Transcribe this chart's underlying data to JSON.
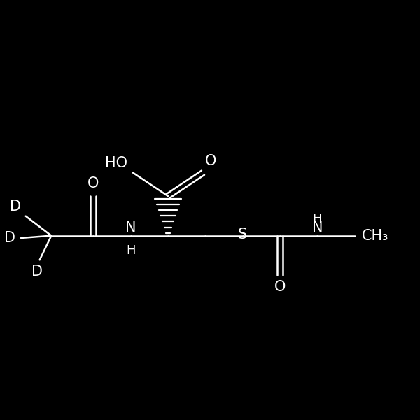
{
  "bg_color": "#000000",
  "fg_color": "#ffffff",
  "figsize": [
    6.0,
    6.0
  ],
  "dpi": 100,
  "lw": 1.8,
  "fs": 15,
  "fs_small": 13,
  "xlim": [
    0.5,
    9.5
  ],
  "ylim": [
    2.0,
    5.5
  ],
  "aspect": "equal"
}
